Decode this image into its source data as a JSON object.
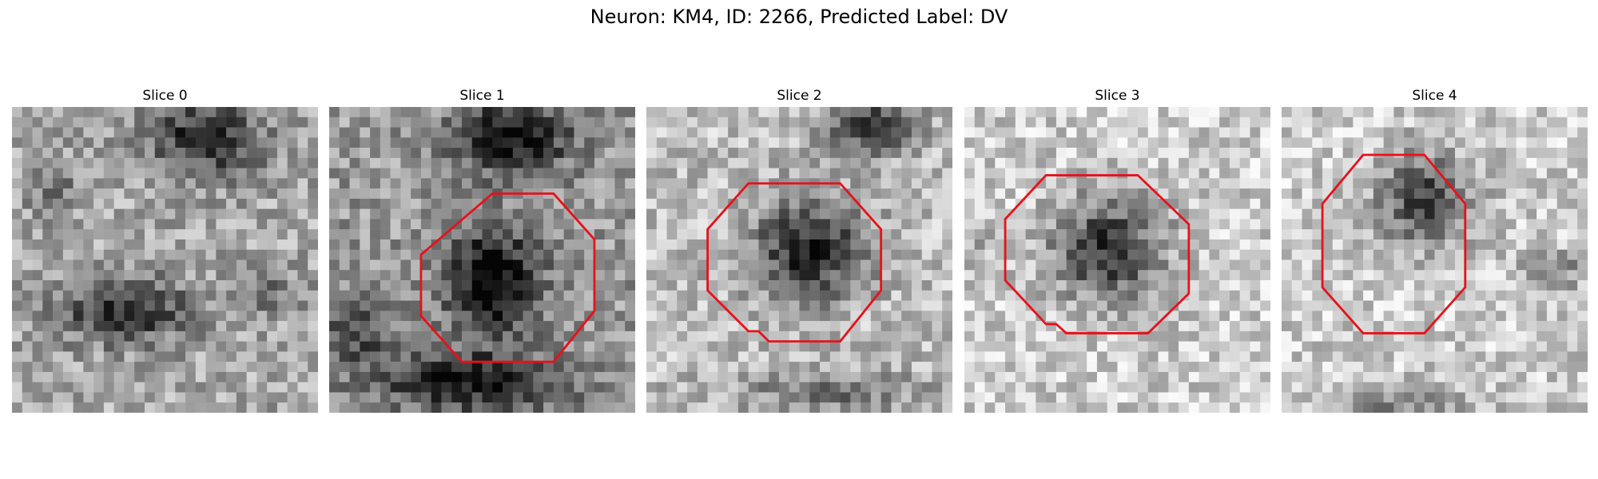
{
  "figure": {
    "title": "Neuron: KM4, ID: 2266, Predicted Label: DV"
  },
  "panels": [
    {
      "label": "Slice 0",
      "has_contour": false
    },
    {
      "label": "Slice 1",
      "has_contour": true
    },
    {
      "label": "Slice 2",
      "has_contour": true
    },
    {
      "label": "Slice 3",
      "has_contour": true
    },
    {
      "label": "Slice 4",
      "has_contour": true
    }
  ],
  "colors": {
    "contour": "#e8111a"
  }
}
